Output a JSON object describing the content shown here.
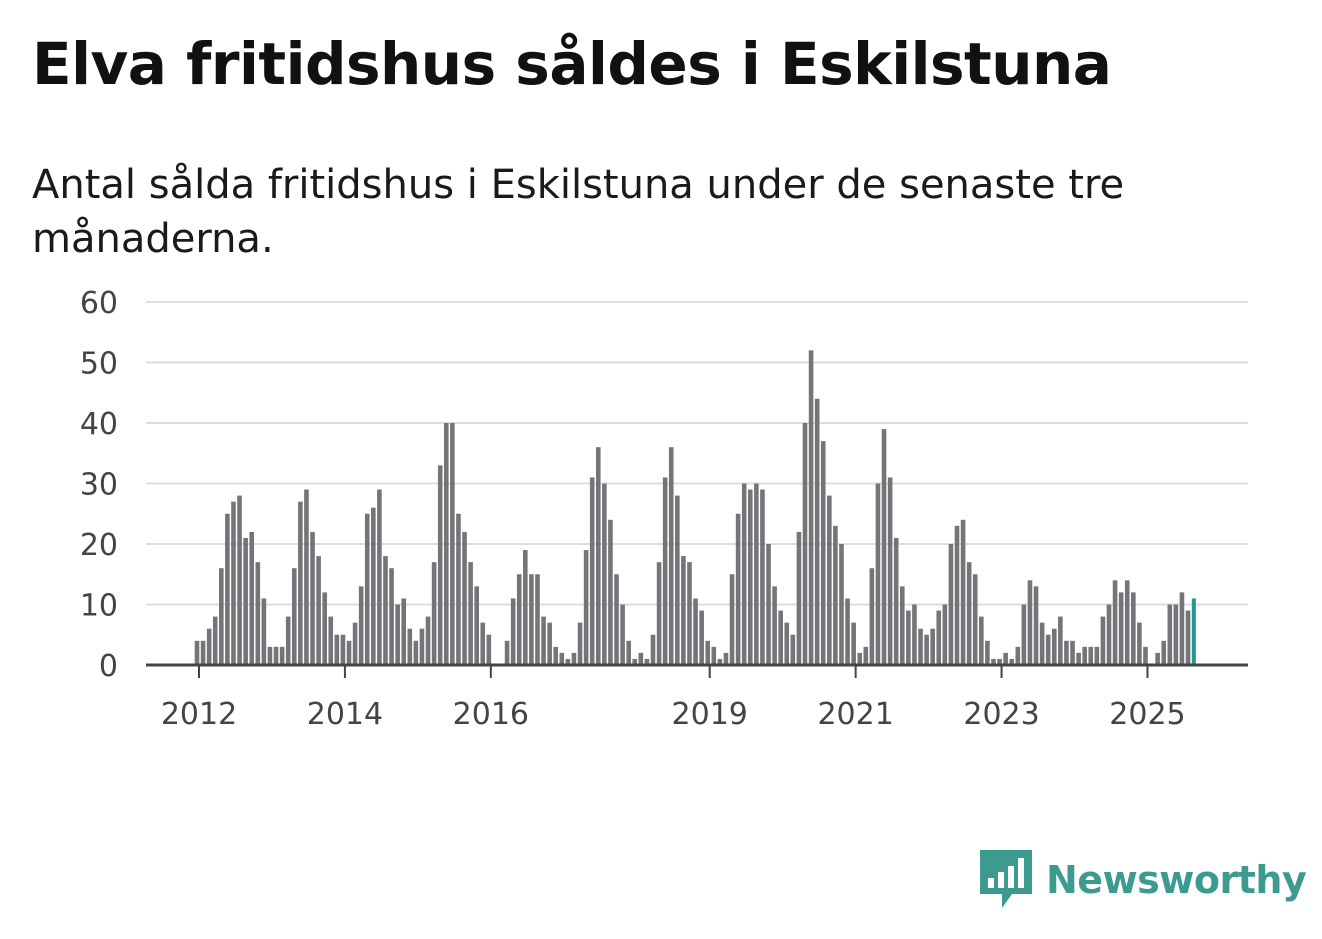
{
  "title": "Elva fritidshus såldes i Eskilstuna",
  "subtitle": "Antal sålda fritidshus i Eskilstuna under de senaste tre månaderna.",
  "brand": {
    "name": "Newsworthy",
    "icon": "bar-chart-speech-bubble-icon",
    "color": "#3c9a90"
  },
  "colors": {
    "bar": "#757478",
    "highlight": "#1d9c8e",
    "grid": "#dddddd",
    "axis": "#444444"
  },
  "chart_data": {
    "type": "bar",
    "title": "Elva fritidshus såldes i Eskilstuna",
    "subtitle": "Antal sålda fritidshus i Eskilstuna under de senaste tre månaderna.",
    "xlabel": "",
    "ylabel": "",
    "ylim": [
      0,
      60
    ],
    "yticks": [
      0,
      10,
      20,
      30,
      40,
      50,
      60
    ],
    "xticks": [
      {
        "label": "2012",
        "index": 0
      },
      {
        "label": "2014",
        "index": 24
      },
      {
        "label": "2016",
        "index": 48
      },
      {
        "label": "2019",
        "index": 84
      },
      {
        "label": "2021",
        "index": 108
      },
      {
        "label": "2023",
        "index": 132
      },
      {
        "label": "2025",
        "index": 156
      }
    ],
    "grid": true,
    "start": "2012-01",
    "interval": "month",
    "values": [
      4,
      4,
      6,
      8,
      16,
      25,
      27,
      28,
      21,
      22,
      17,
      11,
      3,
      3,
      3,
      8,
      16,
      27,
      29,
      22,
      18,
      12,
      8,
      5,
      5,
      4,
      7,
      13,
      25,
      26,
      29,
      18,
      16,
      10,
      11,
      6,
      4,
      6,
      8,
      17,
      33,
      40,
      40,
      25,
      22,
      17,
      13,
      7,
      5,
      0,
      0,
      4,
      11,
      15,
      19,
      15,
      15,
      8,
      7,
      3,
      2,
      1,
      2,
      7,
      19,
      31,
      36,
      30,
      24,
      15,
      10,
      4,
      1,
      2,
      1,
      5,
      17,
      31,
      36,
      28,
      18,
      17,
      11,
      9,
      4,
      3,
      1,
      2,
      15,
      25,
      30,
      29,
      30,
      29,
      20,
      13,
      9,
      7,
      5,
      22,
      40,
      52,
      44,
      37,
      28,
      23,
      20,
      11,
      7,
      2,
      3,
      16,
      30,
      39,
      31,
      21,
      13,
      9,
      10,
      6,
      5,
      6,
      9,
      10,
      20,
      23,
      24,
      17,
      15,
      8,
      4,
      1,
      1,
      2,
      1,
      3,
      10,
      14,
      13,
      7,
      5,
      6,
      8,
      4,
      4,
      2,
      3,
      3,
      3,
      8,
      10,
      14,
      12,
      14,
      12,
      7,
      3,
      0,
      2,
      4,
      10,
      10,
      12,
      9,
      11
    ],
    "annotations": [
      {
        "index": 165,
        "label": "11"
      }
    ]
  }
}
